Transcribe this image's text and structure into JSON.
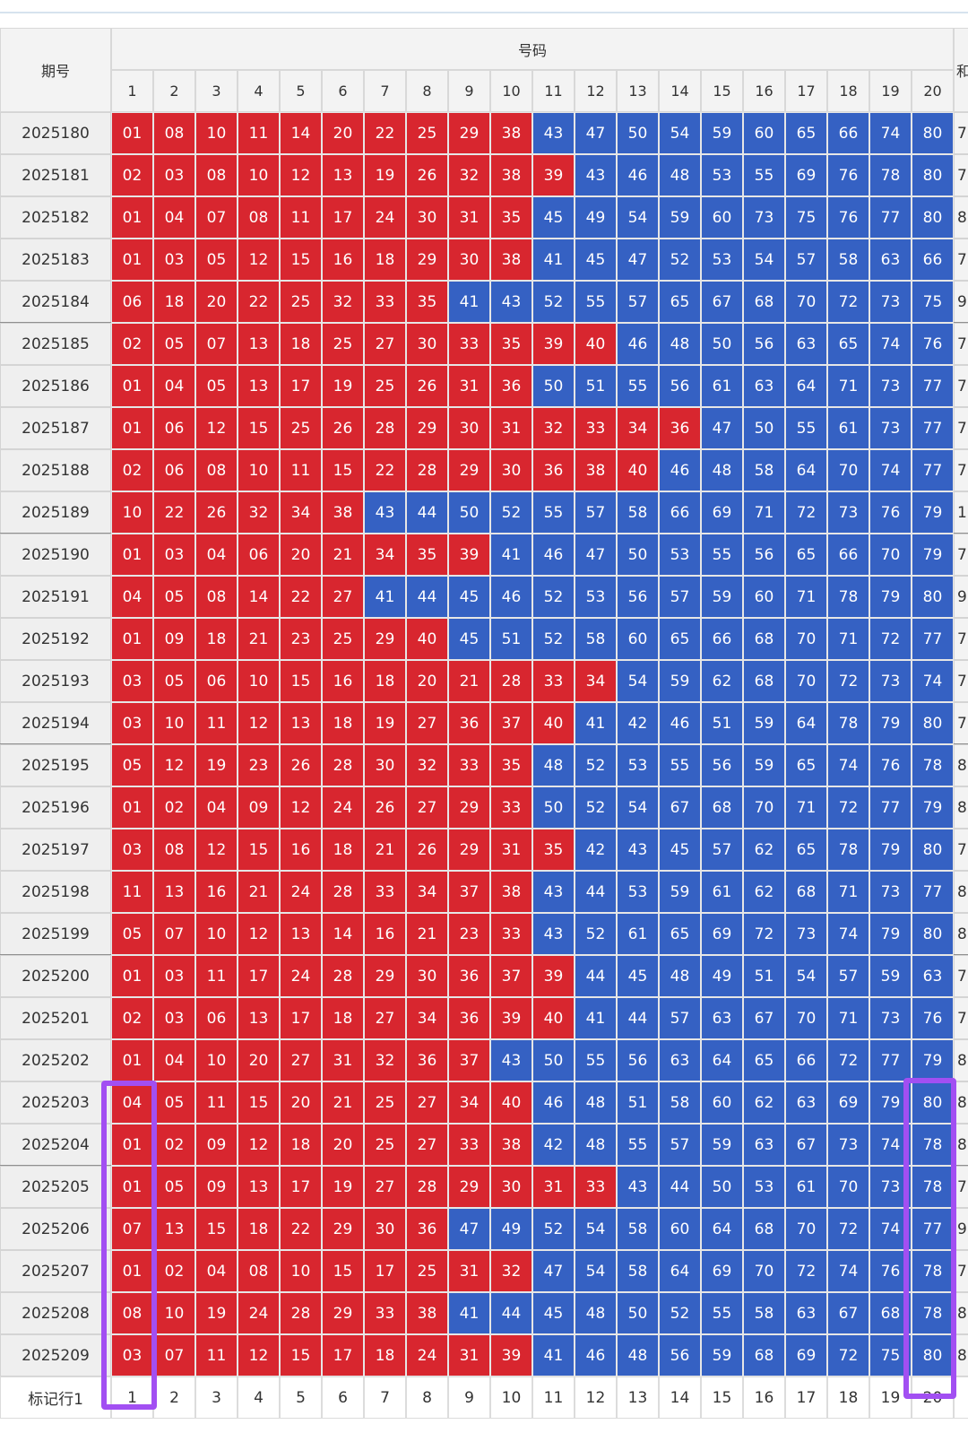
{
  "header": {
    "period": "期号",
    "numbers": "号码",
    "sum": "和",
    "columns": [
      1,
      2,
      3,
      4,
      5,
      6,
      7,
      8,
      9,
      10,
      11,
      12,
      13,
      14,
      15,
      16,
      17,
      18,
      19,
      20
    ]
  },
  "rows": [
    {
      "period": "2025180",
      "numbers": [
        "01",
        "08",
        "10",
        "11",
        "14",
        "20",
        "22",
        "25",
        "29",
        "38",
        "43",
        "47",
        "50",
        "54",
        "59",
        "60",
        "65",
        "66",
        "74",
        "80"
      ],
      "sum": "7"
    },
    {
      "period": "2025181",
      "numbers": [
        "02",
        "03",
        "08",
        "10",
        "12",
        "13",
        "19",
        "26",
        "32",
        "38",
        "39",
        "43",
        "46",
        "48",
        "53",
        "55",
        "69",
        "76",
        "78",
        "80"
      ],
      "sum": "7"
    },
    {
      "period": "2025182",
      "numbers": [
        "01",
        "04",
        "07",
        "08",
        "11",
        "17",
        "24",
        "30",
        "31",
        "35",
        "45",
        "49",
        "54",
        "59",
        "60",
        "73",
        "75",
        "76",
        "77",
        "80"
      ],
      "sum": "8"
    },
    {
      "period": "2025183",
      "numbers": [
        "01",
        "03",
        "05",
        "12",
        "15",
        "16",
        "18",
        "29",
        "30",
        "38",
        "41",
        "45",
        "47",
        "52",
        "53",
        "54",
        "57",
        "58",
        "63",
        "66"
      ],
      "sum": "7"
    },
    {
      "period": "2025184",
      "numbers": [
        "06",
        "18",
        "20",
        "22",
        "25",
        "32",
        "33",
        "35",
        "41",
        "43",
        "52",
        "55",
        "57",
        "65",
        "67",
        "68",
        "70",
        "72",
        "73",
        "75"
      ],
      "sum": "9"
    },
    {
      "period": "2025185",
      "numbers": [
        "02",
        "05",
        "07",
        "13",
        "18",
        "25",
        "27",
        "30",
        "33",
        "35",
        "39",
        "40",
        "46",
        "48",
        "50",
        "56",
        "63",
        "65",
        "74",
        "76"
      ],
      "sum": "7"
    },
    {
      "period": "2025186",
      "numbers": [
        "01",
        "04",
        "05",
        "13",
        "17",
        "19",
        "25",
        "26",
        "31",
        "36",
        "50",
        "51",
        "55",
        "56",
        "61",
        "63",
        "64",
        "71",
        "73",
        "77"
      ],
      "sum": "7"
    },
    {
      "period": "2025187",
      "numbers": [
        "01",
        "06",
        "12",
        "15",
        "25",
        "26",
        "28",
        "29",
        "30",
        "31",
        "32",
        "33",
        "34",
        "36",
        "47",
        "50",
        "55",
        "61",
        "73",
        "77"
      ],
      "sum": "7"
    },
    {
      "period": "2025188",
      "numbers": [
        "02",
        "06",
        "08",
        "10",
        "11",
        "15",
        "22",
        "28",
        "29",
        "30",
        "36",
        "38",
        "40",
        "46",
        "48",
        "58",
        "64",
        "70",
        "74",
        "77"
      ],
      "sum": "7"
    },
    {
      "period": "2025189",
      "numbers": [
        "10",
        "22",
        "26",
        "32",
        "34",
        "38",
        "43",
        "44",
        "50",
        "52",
        "55",
        "57",
        "58",
        "66",
        "69",
        "71",
        "72",
        "73",
        "76",
        "79"
      ],
      "sum": "1"
    },
    {
      "period": "2025190",
      "numbers": [
        "01",
        "03",
        "04",
        "06",
        "20",
        "21",
        "34",
        "35",
        "39",
        "41",
        "46",
        "47",
        "50",
        "53",
        "55",
        "56",
        "65",
        "66",
        "70",
        "79"
      ],
      "sum": "7"
    },
    {
      "period": "2025191",
      "numbers": [
        "04",
        "05",
        "08",
        "14",
        "22",
        "27",
        "41",
        "44",
        "45",
        "46",
        "52",
        "53",
        "56",
        "57",
        "59",
        "60",
        "71",
        "78",
        "79",
        "80"
      ],
      "sum": "9"
    },
    {
      "period": "2025192",
      "numbers": [
        "01",
        "09",
        "18",
        "21",
        "23",
        "25",
        "29",
        "40",
        "45",
        "51",
        "52",
        "58",
        "60",
        "65",
        "66",
        "68",
        "70",
        "71",
        "72",
        "77"
      ],
      "sum": "7"
    },
    {
      "period": "2025193",
      "numbers": [
        "03",
        "05",
        "06",
        "10",
        "15",
        "16",
        "18",
        "20",
        "21",
        "28",
        "33",
        "34",
        "54",
        "59",
        "62",
        "68",
        "70",
        "72",
        "73",
        "74"
      ],
      "sum": "7"
    },
    {
      "period": "2025194",
      "numbers": [
        "03",
        "10",
        "11",
        "12",
        "13",
        "18",
        "19",
        "27",
        "36",
        "37",
        "40",
        "41",
        "42",
        "46",
        "51",
        "59",
        "64",
        "78",
        "79",
        "80"
      ],
      "sum": "7"
    },
    {
      "period": "2025195",
      "numbers": [
        "05",
        "12",
        "19",
        "23",
        "26",
        "28",
        "30",
        "32",
        "33",
        "35",
        "48",
        "52",
        "53",
        "55",
        "56",
        "59",
        "65",
        "74",
        "76",
        "78"
      ],
      "sum": "8"
    },
    {
      "period": "2025196",
      "numbers": [
        "01",
        "02",
        "04",
        "09",
        "12",
        "24",
        "26",
        "27",
        "29",
        "33",
        "50",
        "52",
        "54",
        "67",
        "68",
        "70",
        "71",
        "72",
        "77",
        "79"
      ],
      "sum": "8"
    },
    {
      "period": "2025197",
      "numbers": [
        "03",
        "08",
        "12",
        "15",
        "16",
        "18",
        "21",
        "26",
        "29",
        "31",
        "35",
        "42",
        "43",
        "45",
        "57",
        "62",
        "65",
        "78",
        "79",
        "80"
      ],
      "sum": "7"
    },
    {
      "period": "2025198",
      "numbers": [
        "11",
        "13",
        "16",
        "21",
        "24",
        "28",
        "33",
        "34",
        "37",
        "38",
        "43",
        "44",
        "53",
        "59",
        "61",
        "62",
        "68",
        "71",
        "73",
        "77"
      ],
      "sum": "8"
    },
    {
      "period": "2025199",
      "numbers": [
        "05",
        "07",
        "10",
        "12",
        "13",
        "14",
        "16",
        "21",
        "23",
        "33",
        "43",
        "52",
        "61",
        "65",
        "69",
        "72",
        "73",
        "74",
        "79",
        "80"
      ],
      "sum": "8"
    },
    {
      "period": "2025200",
      "numbers": [
        "01",
        "03",
        "11",
        "17",
        "24",
        "28",
        "29",
        "30",
        "36",
        "37",
        "39",
        "44",
        "45",
        "48",
        "49",
        "51",
        "54",
        "57",
        "59",
        "63"
      ],
      "sum": "7"
    },
    {
      "period": "2025201",
      "numbers": [
        "02",
        "03",
        "06",
        "13",
        "17",
        "18",
        "27",
        "34",
        "36",
        "39",
        "40",
        "41",
        "44",
        "57",
        "63",
        "67",
        "70",
        "71",
        "73",
        "76"
      ],
      "sum": "7"
    },
    {
      "period": "2025202",
      "numbers": [
        "01",
        "04",
        "10",
        "20",
        "27",
        "31",
        "32",
        "36",
        "37",
        "43",
        "50",
        "55",
        "56",
        "63",
        "64",
        "65",
        "66",
        "72",
        "77",
        "79"
      ],
      "sum": "8"
    },
    {
      "period": "2025203",
      "numbers": [
        "04",
        "05",
        "11",
        "15",
        "20",
        "21",
        "25",
        "27",
        "34",
        "40",
        "46",
        "48",
        "51",
        "58",
        "60",
        "62",
        "63",
        "69",
        "79",
        "80"
      ],
      "sum": "8"
    },
    {
      "period": "2025204",
      "numbers": [
        "01",
        "02",
        "09",
        "12",
        "18",
        "20",
        "25",
        "27",
        "33",
        "38",
        "42",
        "48",
        "55",
        "57",
        "59",
        "63",
        "67",
        "73",
        "74",
        "78"
      ],
      "sum": "8"
    },
    {
      "period": "2025205",
      "numbers": [
        "01",
        "05",
        "09",
        "13",
        "17",
        "19",
        "27",
        "28",
        "29",
        "30",
        "31",
        "33",
        "43",
        "44",
        "50",
        "53",
        "61",
        "70",
        "73",
        "78"
      ],
      "sum": "7"
    },
    {
      "period": "2025206",
      "numbers": [
        "07",
        "13",
        "15",
        "18",
        "22",
        "29",
        "30",
        "36",
        "47",
        "49",
        "52",
        "54",
        "58",
        "60",
        "64",
        "68",
        "70",
        "72",
        "74",
        "77"
      ],
      "sum": "9"
    },
    {
      "period": "2025207",
      "numbers": [
        "01",
        "02",
        "04",
        "08",
        "10",
        "15",
        "17",
        "25",
        "31",
        "32",
        "47",
        "54",
        "58",
        "64",
        "69",
        "70",
        "72",
        "74",
        "76",
        "78"
      ],
      "sum": "7"
    },
    {
      "period": "2025208",
      "numbers": [
        "08",
        "10",
        "19",
        "24",
        "28",
        "29",
        "33",
        "38",
        "41",
        "44",
        "45",
        "48",
        "50",
        "52",
        "55",
        "58",
        "63",
        "67",
        "68",
        "78"
      ],
      "sum": "8"
    },
    {
      "period": "2025209",
      "numbers": [
        "03",
        "07",
        "11",
        "12",
        "15",
        "17",
        "18",
        "24",
        "31",
        "39",
        "41",
        "46",
        "48",
        "56",
        "59",
        "68",
        "69",
        "72",
        "75",
        "80"
      ],
      "sum": "8"
    }
  ],
  "footer": {
    "label": "标记行1",
    "columns": [
      1,
      2,
      3,
      4,
      5,
      6,
      7,
      8,
      9,
      10,
      11,
      12,
      13,
      14,
      15,
      16,
      17,
      18,
      19,
      20
    ]
  }
}
